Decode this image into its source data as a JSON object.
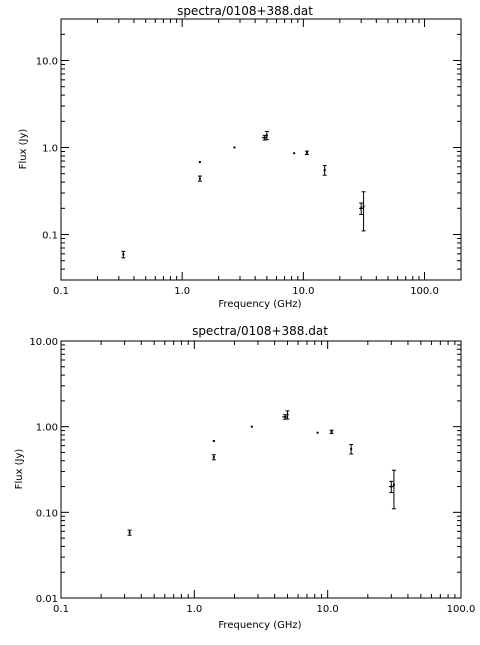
{
  "chart_data": [
    {
      "type": "scatter",
      "title": "spectra/0108+388.dat",
      "xlabel": "Frequency (GHz)",
      "ylabel": "Flux (Jy)",
      "x_scale": "log",
      "y_scale": "log",
      "xlim": [
        0.1,
        200
      ],
      "ylim": [
        0.03,
        30
      ],
      "x_ticks": [
        {
          "value": 0.1,
          "label": "0.1"
        },
        {
          "value": 1,
          "label": "1.0"
        },
        {
          "value": 10,
          "label": "10.0"
        },
        {
          "value": 100,
          "label": "100.0"
        }
      ],
      "y_ticks": [
        {
          "value": 0.1,
          "label": "0.1"
        },
        {
          "value": 1,
          "label": "1.0"
        },
        {
          "value": 10,
          "label": "10.0"
        }
      ],
      "points": [
        {
          "x": 0.327,
          "y": 0.059,
          "yerr": 0.005,
          "xerr": 0
        },
        {
          "x": 1.4,
          "y": 0.44,
          "yerr": 0.03,
          "xerr": 0
        },
        {
          "x": 1.4,
          "y": 0.68,
          "yerr": 0,
          "xerr": 0
        },
        {
          "x": 2.7,
          "y": 1.0,
          "yerr": 0,
          "xerr": 0
        },
        {
          "x": 4.8,
          "y": 1.3,
          "yerr": 0.08,
          "xerr": 0.25
        },
        {
          "x": 5.0,
          "y": 1.38,
          "yerr": 0.15,
          "xerr": 0
        },
        {
          "x": 8.4,
          "y": 0.86,
          "yerr": 0,
          "xerr": 0
        },
        {
          "x": 10.7,
          "y": 0.87,
          "yerr": 0.04,
          "xerr": 0
        },
        {
          "x": 15.0,
          "y": 0.55,
          "yerr": 0.07,
          "xerr": 0
        },
        {
          "x": 30.0,
          "y": 0.2,
          "yerr": 0.03,
          "xerr": 1.2
        },
        {
          "x": 31.4,
          "y": 0.21,
          "yerr": 0.1,
          "xerr": 0
        }
      ]
    },
    {
      "type": "scatter",
      "title": "spectra/0108+388.dat",
      "xlabel": "Frequency (GHz)",
      "ylabel": "Flux (Jy)",
      "x_scale": "log",
      "y_scale": "log",
      "xlim": [
        0.1,
        100
      ],
      "ylim": [
        0.01,
        10
      ],
      "x_ticks": [
        {
          "value": 0.1,
          "label": "0.1"
        },
        {
          "value": 1,
          "label": "1.0"
        },
        {
          "value": 10,
          "label": "10.0"
        },
        {
          "value": 100,
          "label": "100.0"
        }
      ],
      "y_ticks": [
        {
          "value": 0.01,
          "label": "0.01"
        },
        {
          "value": 0.1,
          "label": "0.10"
        },
        {
          "value": 1,
          "label": "1.00"
        },
        {
          "value": 10,
          "label": "10.00"
        }
      ],
      "points": [
        {
          "x": 0.327,
          "y": 0.058,
          "yerr": 0.004,
          "xerr": 0
        },
        {
          "x": 1.4,
          "y": 0.44,
          "yerr": 0.03,
          "xerr": 0
        },
        {
          "x": 1.4,
          "y": 0.68,
          "yerr": 0,
          "xerr": 0
        },
        {
          "x": 2.7,
          "y": 1.0,
          "yerr": 0,
          "xerr": 0
        },
        {
          "x": 4.8,
          "y": 1.3,
          "yerr": 0.08,
          "xerr": 0.25
        },
        {
          "x": 5.0,
          "y": 1.38,
          "yerr": 0.15,
          "xerr": 0
        },
        {
          "x": 8.4,
          "y": 0.85,
          "yerr": 0,
          "xerr": 0
        },
        {
          "x": 10.7,
          "y": 0.87,
          "yerr": 0.04,
          "xerr": 0
        },
        {
          "x": 15.0,
          "y": 0.55,
          "yerr": 0.07,
          "xerr": 0
        },
        {
          "x": 30.0,
          "y": 0.2,
          "yerr": 0.03,
          "xerr": 1.2
        },
        {
          "x": 31.4,
          "y": 0.21,
          "yerr": 0.1,
          "xerr": 0
        }
      ]
    }
  ]
}
